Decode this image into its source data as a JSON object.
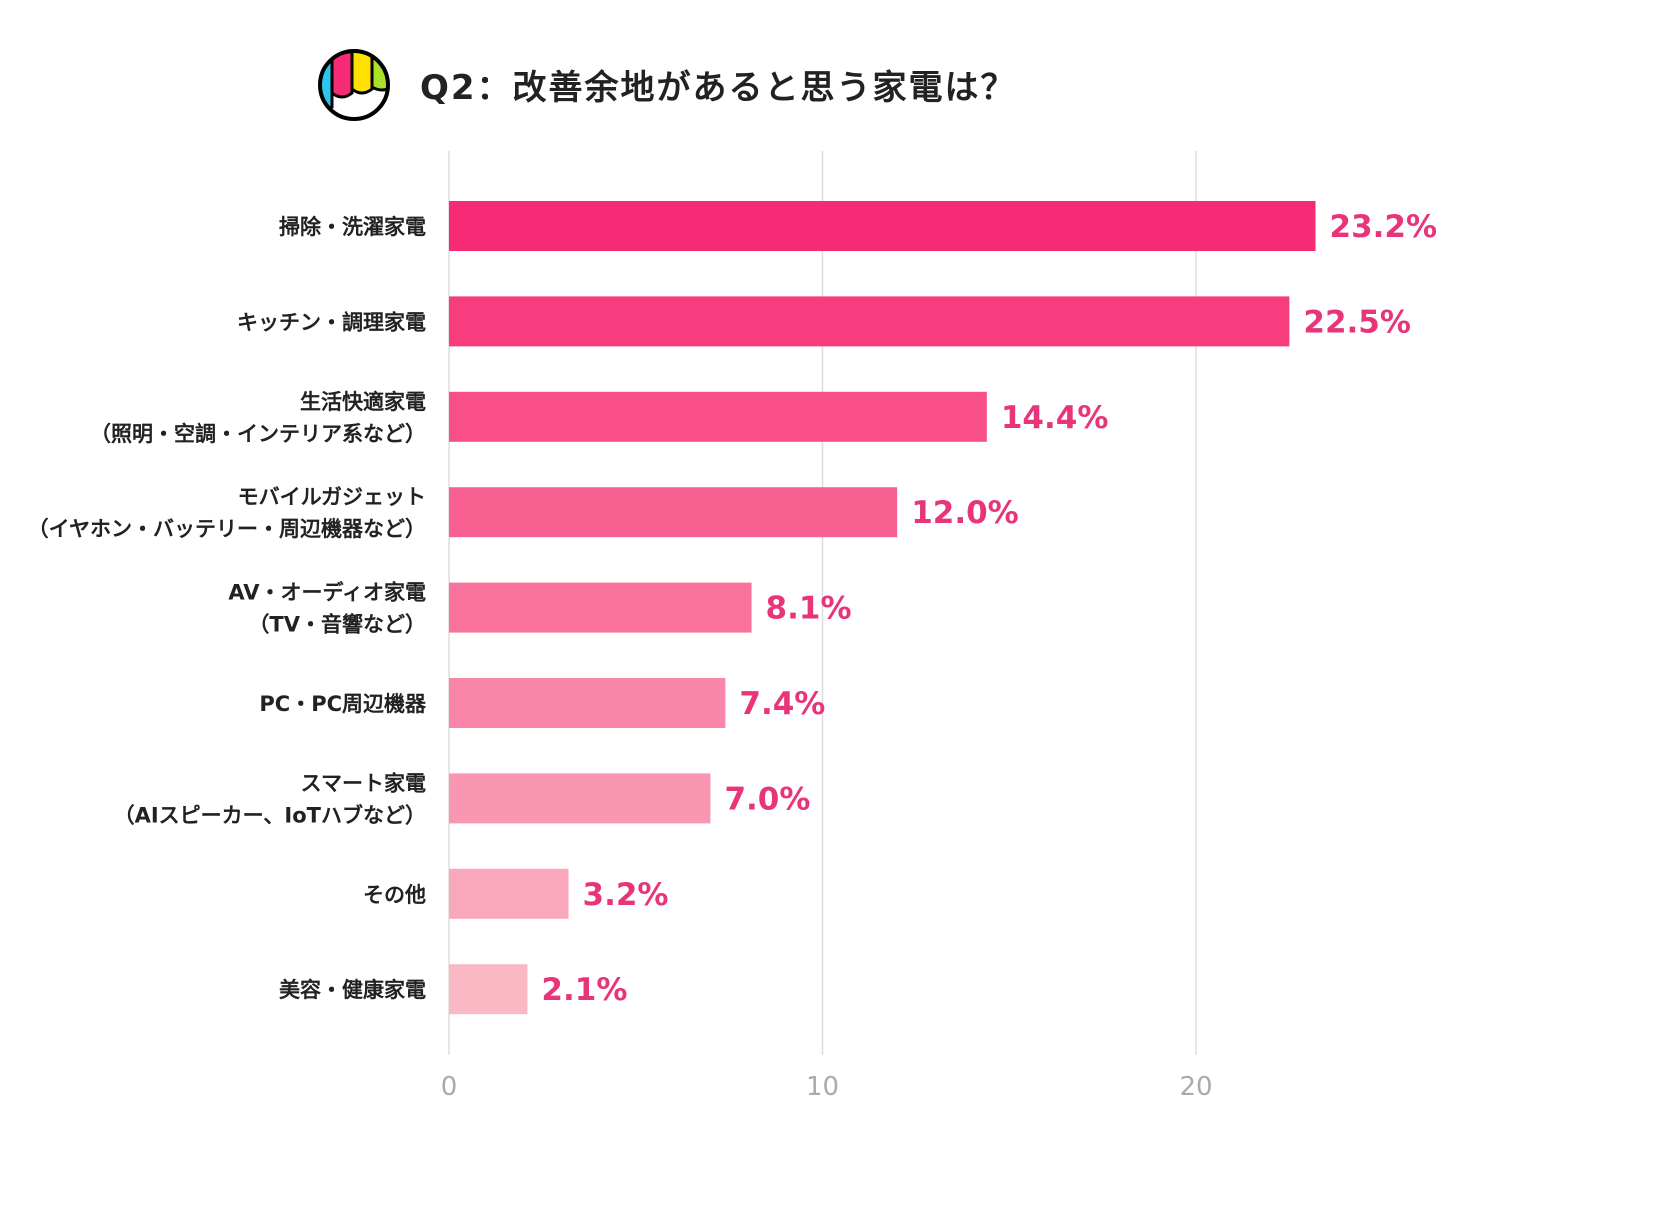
{
  "title": "Q2：改善余地があると思う家電は？",
  "chart_data": {
    "type": "bar",
    "orientation": "horizontal",
    "title": "Q2：改善余地があると思う家電は？",
    "categories": [
      [
        "掃除・洗濯家電"
      ],
      [
        "キッチン・調理家電"
      ],
      [
        "生活快適家電",
        "（照明・空調・インテリア系など）"
      ],
      [
        "モバイルガジェット",
        "（イヤホン・バッテリー・周辺機器など）"
      ],
      [
        "AV・オーディオ家電",
        "（TV・音響など）"
      ],
      [
        "PC・PC周辺機器"
      ],
      [
        "スマート家電",
        "（AIスピーカー、IoTハブなど）"
      ],
      [
        "その他"
      ],
      [
        "美容・健康家電"
      ]
    ],
    "values": [
      23.2,
      22.5,
      14.4,
      12.0,
      8.1,
      7.4,
      7.0,
      3.2,
      2.1
    ],
    "data_labels": [
      "23.2%",
      "22.5%",
      "14.4%",
      "12.0%",
      "8.1%",
      "7.4%",
      "7.0%",
      "3.2%",
      "2.1%"
    ],
    "xlim": [
      0,
      25
    ],
    "xticks": [
      "0",
      "10",
      "20"
    ],
    "grid": true,
    "xlabel": "",
    "ylabel": "",
    "colors": [
      "#f72a76",
      "#f83d7f",
      "#f84f88",
      "#f86192",
      "#f9739d",
      "#f985a8",
      "#f997b2",
      "#f9a8bb",
      "#f9b8c4"
    ],
    "label_color": "#e8357a"
  }
}
